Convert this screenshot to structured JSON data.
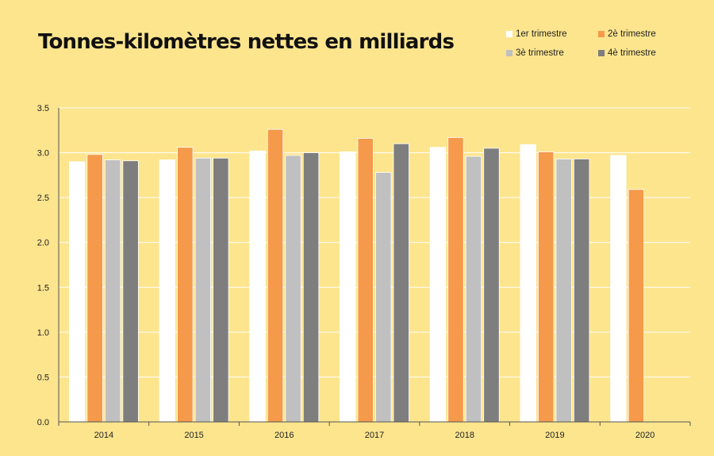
{
  "chart_data": {
    "type": "bar",
    "title": "Tonnes-kilomètres nettes en milliards",
    "xlabel": "",
    "ylabel": "",
    "categories": [
      "2014",
      "2015",
      "2016",
      "2017",
      "2018",
      "2019",
      "2020"
    ],
    "series": [
      {
        "name": "1er trimestre",
        "color": "#ffffff",
        "values": [
          2.9,
          2.92,
          3.02,
          3.01,
          3.06,
          3.09,
          2.97
        ]
      },
      {
        "name": "2è trimestre",
        "color": "#f5994a",
        "values": [
          2.98,
          3.06,
          3.26,
          3.16,
          3.17,
          3.01,
          2.59
        ]
      },
      {
        "name": "3è trimestre",
        "color": "#c0c0c0",
        "values": [
          2.92,
          2.94,
          2.97,
          2.78,
          2.96,
          2.93,
          null
        ]
      },
      {
        "name": "4è trimestre",
        "color": "#7e7e7e",
        "values": [
          2.91,
          2.94,
          3.0,
          3.1,
          3.05,
          2.93,
          null
        ]
      }
    ],
    "ylim": [
      0,
      3.5
    ],
    "yticks": [
      "0.0",
      "0.5",
      "1.0",
      "1.5",
      "2.0",
      "2.5",
      "3.0",
      "3.5"
    ],
    "grid": true,
    "legend_position": "top-right"
  }
}
